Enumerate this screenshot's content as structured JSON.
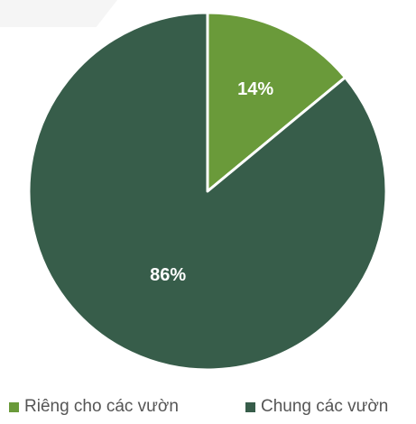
{
  "chart_data": {
    "type": "pie",
    "title": "",
    "legend_position": "bottom",
    "slices": [
      {
        "label": "Riêng cho các vườn",
        "value": 14,
        "display": "14%",
        "color": "#6a9a3a"
      },
      {
        "label": "Chung các vườn",
        "value": 86,
        "display": "86%",
        "color": "#375d4a"
      }
    ]
  }
}
